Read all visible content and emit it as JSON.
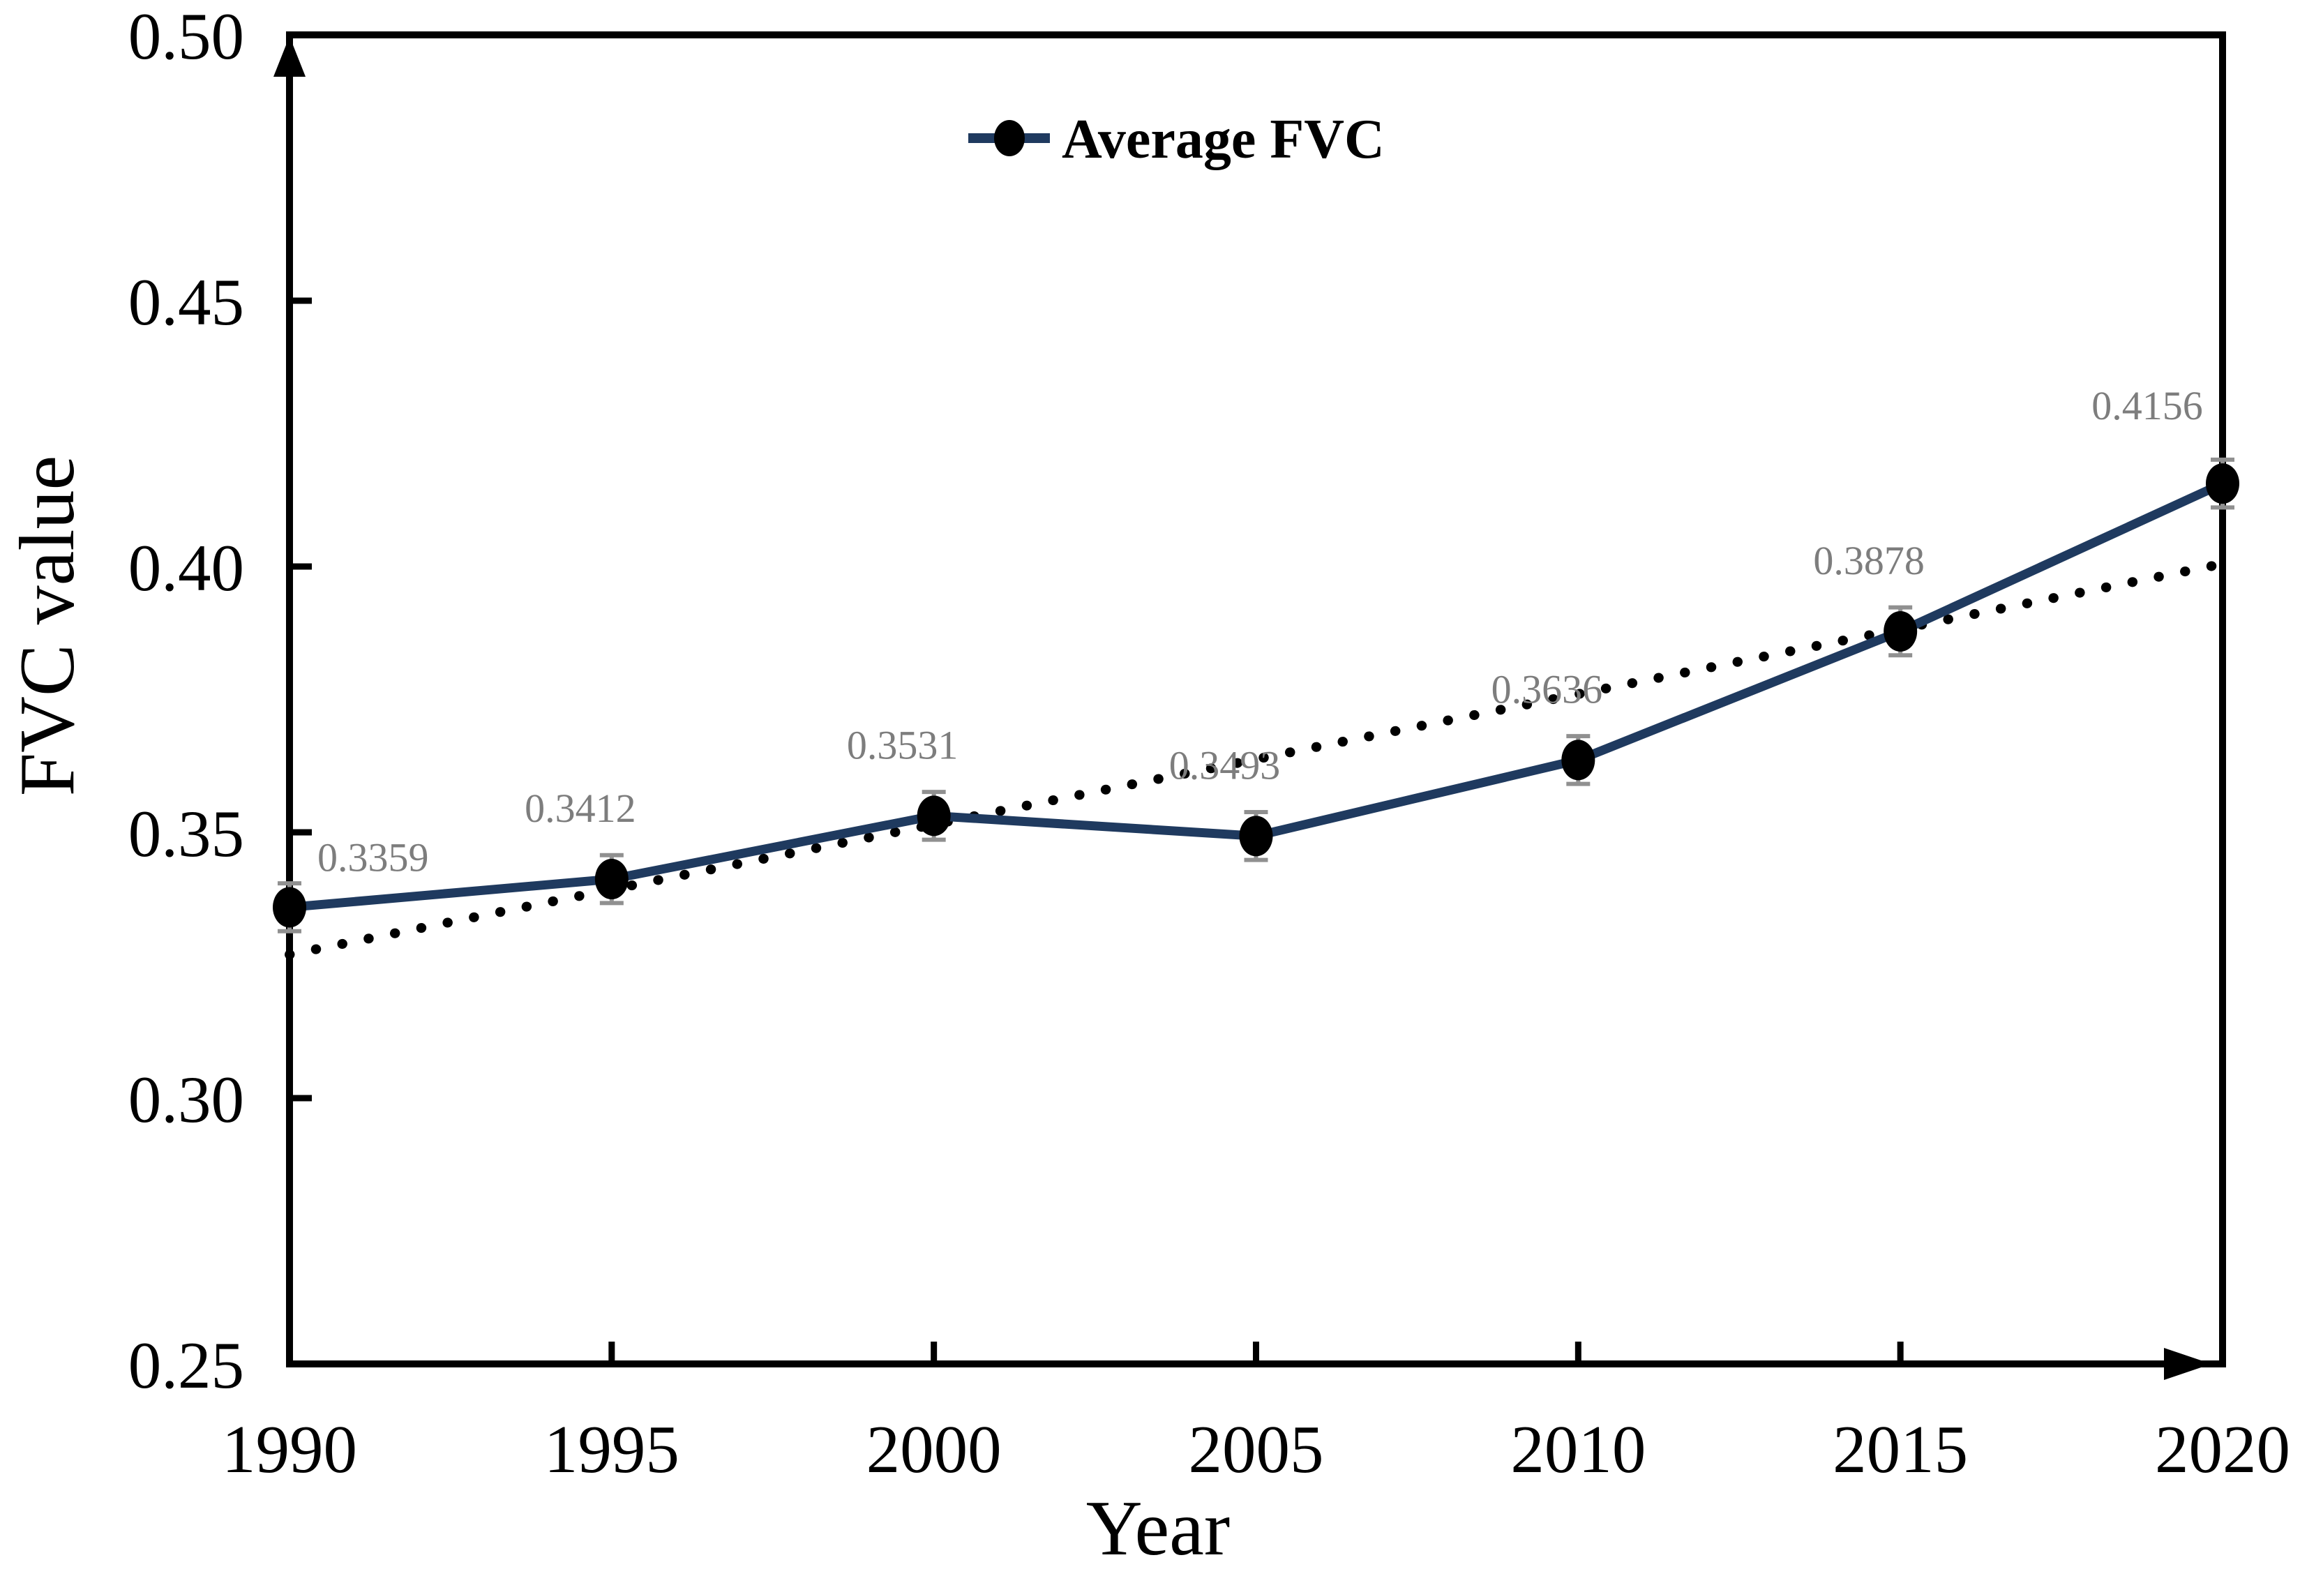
{
  "chart_data": {
    "type": "line",
    "title": "",
    "xlabel": "Year",
    "ylabel": "FVC value",
    "x": [
      1990,
      1995,
      2000,
      2005,
      2010,
      2015,
      2020
    ],
    "series": [
      {
        "name": "Average FVC",
        "values": [
          0.3359,
          0.3412,
          0.3531,
          0.3493,
          0.3636,
          0.3878,
          0.4156
        ]
      }
    ],
    "data_labels": [
      "0.3359",
      "0.3412",
      "0.3531",
      "0.3493",
      "0.3636",
      "0.3878",
      "0.4156"
    ],
    "error_bar_half_value": 0.0045,
    "trendline": {
      "style": "dotted",
      "x": [
        1990,
        2020
      ],
      "y_start": 0.327,
      "y_end": 0.4005
    },
    "xlim": [
      1990,
      2020
    ],
    "ylim": [
      0.25,
      0.5
    ],
    "xtick_values": [
      1990,
      1995,
      2000,
      2005,
      2010,
      2015,
      2020
    ],
    "xtick_labels": [
      "1990",
      "1995",
      "2000",
      "2005",
      "2010",
      "2015",
      "2020"
    ],
    "xticks_with_marks": [
      1995,
      2000,
      2005,
      2010,
      2015
    ],
    "ytick_values": [
      0.25,
      0.3,
      0.35,
      0.4,
      0.45,
      0.5
    ],
    "ytick_labels": [
      "0.25",
      "0.30",
      "0.35",
      "0.40",
      "0.45",
      "0.50"
    ],
    "yticks_with_marks": [
      0.3,
      0.35,
      0.4,
      0.45
    ],
    "grid": false,
    "legend": {
      "position": "top-center",
      "entries": [
        "Average FVC"
      ]
    },
    "axis_arrows": {
      "y_axis_up": true,
      "x_axis_right": true
    }
  },
  "legend": {
    "label": "Average FVC"
  },
  "axes": {
    "x_title": "Year",
    "y_title": "FVC value"
  },
  "colors": {
    "series_line": "#1f3a5f",
    "marker": "#000000",
    "trendline": "#000000",
    "error_bar": "#909090",
    "data_label": "#7d7d7d",
    "axis": "#000000",
    "background": "#ffffff"
  }
}
